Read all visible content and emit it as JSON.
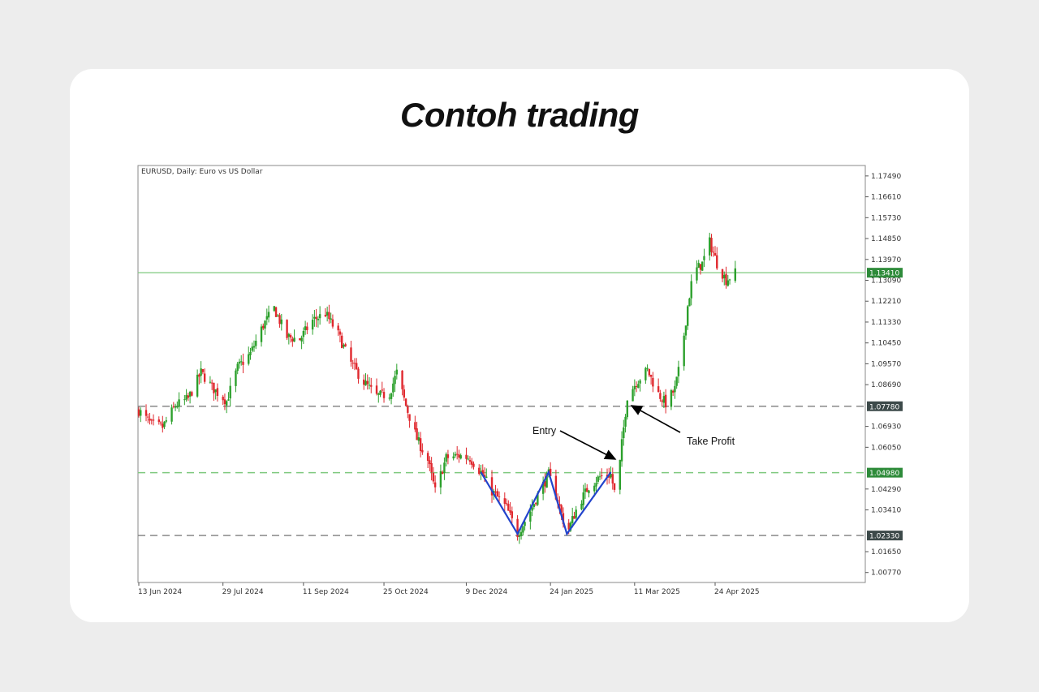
{
  "page": {
    "title": "Contoh trading"
  },
  "chart_data": {
    "type": "candlestick",
    "symbol_label": "EURUSD, Daily:  Euro vs US Dollar",
    "ylim": [
      1.0035,
      1.1793
    ],
    "y_ticks": [
      "1.17490",
      "1.16610",
      "1.15730",
      "1.14850",
      "1.13970",
      "1.13090",
      "1.12210",
      "1.11330",
      "1.10450",
      "1.09570",
      "1.08690",
      "1.06930",
      "1.06050",
      "1.04290",
      "1.03410",
      "1.01650",
      "1.00770"
    ],
    "x_ticks": [
      "13 Jun 2024",
      "29 Jul 2024",
      "11 Sep 2024",
      "25 Oct 2024",
      "9 Dec 2024",
      "24 Jan 2025",
      "11 Mar 2025",
      "24 Apr 2025"
    ],
    "grid": false,
    "colors": {
      "up": "#2ca02c",
      "down": "#e0282e",
      "pattern": "#2244cc",
      "level_line": "#7fc97f"
    },
    "price_levels": [
      {
        "value": 1.1341,
        "label": "1.13410",
        "style": "solid",
        "color": "#7fc97f",
        "tag_color": "#2e8b3a"
      },
      {
        "value": 1.0778,
        "label": "1.07780",
        "style": "dashed",
        "color": "#7d7d7d",
        "tag_color": "#3d4a4a"
      },
      {
        "value": 1.0498,
        "label": "1.04980",
        "style": "dashed",
        "color": "#7fc97f",
        "tag_color": "#2e8b3a"
      },
      {
        "value": 1.0233,
        "label": "1.02330",
        "style": "dashed",
        "color": "#7d7d7d",
        "tag_color": "#3d4a4a"
      }
    ],
    "annotations": [
      {
        "text": "Entry"
      },
      {
        "text": "Take Profit"
      }
    ],
    "pattern": {
      "name": "",
      "points": [
        {
          "date": "2024-12-17",
          "price": 1.05
        },
        {
          "date": "2025-01-06",
          "price": 1.024
        },
        {
          "date": "2025-01-23",
          "price": 1.05
        },
        {
          "date": "2025-02-02",
          "price": 1.024
        },
        {
          "date": "2025-02-26",
          "price": 1.05
        }
      ]
    },
    "close_path": [
      [
        "2024-06-13",
        1.076
      ],
      [
        "2024-06-20",
        1.07
      ],
      [
        "2024-06-26",
        1.069
      ],
      [
        "2024-07-03",
        1.078
      ],
      [
        "2024-07-10",
        1.081
      ],
      [
        "2024-07-17",
        1.092
      ],
      [
        "2024-07-24",
        1.085
      ],
      [
        "2024-07-31",
        1.08
      ],
      [
        "2024-08-06",
        1.094
      ],
      [
        "2024-08-13",
        1.1
      ],
      [
        "2024-08-20",
        1.112
      ],
      [
        "2024-08-26",
        1.119
      ],
      [
        "2024-09-02",
        1.107
      ],
      [
        "2024-09-09",
        1.106
      ],
      [
        "2024-09-16",
        1.114
      ],
      [
        "2024-09-23",
        1.117
      ],
      [
        "2024-09-30",
        1.108
      ],
      [
        "2024-10-07",
        1.096
      ],
      [
        "2024-10-14",
        1.088
      ],
      [
        "2024-10-21",
        1.082
      ],
      [
        "2024-10-28",
        1.083
      ],
      [
        "2024-11-01",
        1.092
      ],
      [
        "2024-11-06",
        1.078
      ],
      [
        "2024-11-12",
        1.064
      ],
      [
        "2024-11-18",
        1.055
      ],
      [
        "2024-11-22",
        1.042
      ],
      [
        "2024-11-28",
        1.056
      ],
      [
        "2024-12-05",
        1.057
      ],
      [
        "2024-12-11",
        1.056
      ],
      [
        "2024-12-17",
        1.05
      ],
      [
        "2024-12-23",
        1.042
      ],
      [
        "2024-12-31",
        1.035
      ],
      [
        "2025-01-06",
        1.024
      ],
      [
        "2025-01-12",
        1.032
      ],
      [
        "2025-01-18",
        1.042
      ],
      [
        "2025-01-23",
        1.049
      ],
      [
        "2025-01-28",
        1.038
      ],
      [
        "2025-02-02",
        1.024
      ],
      [
        "2025-02-08",
        1.036
      ],
      [
        "2025-02-14",
        1.044
      ],
      [
        "2025-02-20",
        1.048
      ],
      [
        "2025-02-26",
        1.049
      ],
      [
        "2025-03-01",
        1.038
      ],
      [
        "2025-03-04",
        1.062
      ],
      [
        "2025-03-07",
        1.082
      ],
      [
        "2025-03-12",
        1.088
      ],
      [
        "2025-03-18",
        1.093
      ],
      [
        "2025-03-24",
        1.083
      ],
      [
        "2025-03-28",
        1.079
      ],
      [
        "2025-04-02",
        1.085
      ],
      [
        "2025-04-05",
        1.096
      ],
      [
        "2025-04-09",
        1.12
      ],
      [
        "2025-04-12",
        1.134
      ],
      [
        "2025-04-17",
        1.138
      ],
      [
        "2025-04-21",
        1.147
      ],
      [
        "2025-04-25",
        1.138
      ],
      [
        "2025-04-30",
        1.131
      ],
      [
        "2025-05-05",
        1.134
      ]
    ]
  }
}
